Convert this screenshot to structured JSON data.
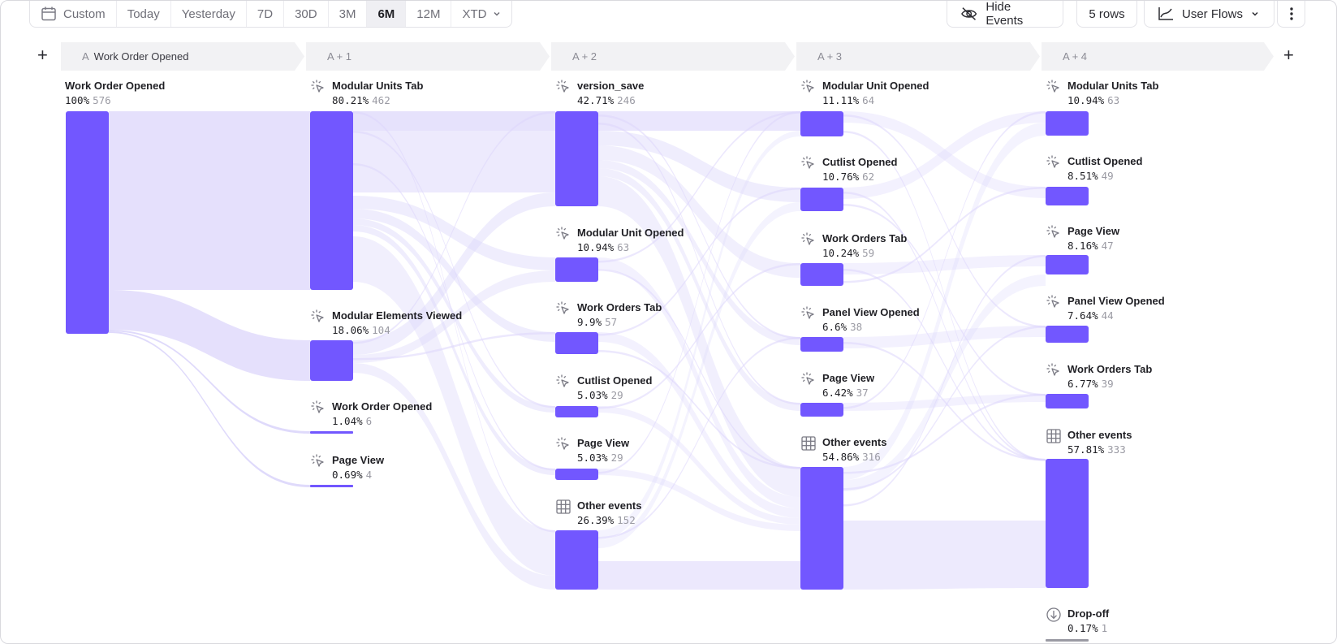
{
  "toolbar": {
    "date_ranges": [
      "Custom",
      "Today",
      "Yesterday",
      "7D",
      "30D",
      "3M",
      "6M",
      "12M",
      "XTD"
    ],
    "active_range": "6M",
    "hide_events_label": "Hide Events",
    "rows_label": "5 rows",
    "view_label": "User Flows"
  },
  "steps": [
    {
      "letter": "A",
      "label": "Work Order Opened"
    },
    {
      "letter": "",
      "label": "A + 1"
    },
    {
      "letter": "",
      "label": "A + 2"
    },
    {
      "letter": "",
      "label": "A + 3"
    },
    {
      "letter": "",
      "label": "A + 4"
    }
  ],
  "columns": [
    [
      {
        "name": "Work Order Opened",
        "pct": "100%",
        "count": "576",
        "icon": "none"
      }
    ],
    [
      {
        "name": "Modular Units Tab",
        "pct": "80.21%",
        "count": "462",
        "icon": "click-icon"
      },
      {
        "name": "Modular Elements Viewed",
        "pct": "18.06%",
        "count": "104",
        "icon": "click-icon"
      },
      {
        "name": "Work Order Opened",
        "pct": "1.04%",
        "count": "6",
        "icon": "click-icon"
      },
      {
        "name": "Page View",
        "pct": "0.69%",
        "count": "4",
        "icon": "click-icon"
      }
    ],
    [
      {
        "name": "version_save",
        "pct": "42.71%",
        "count": "246",
        "icon": "click-icon"
      },
      {
        "name": "Modular Unit Opened",
        "pct": "10.94%",
        "count": "63",
        "icon": "click-icon"
      },
      {
        "name": "Work Orders Tab",
        "pct": "9.9%",
        "count": "57",
        "icon": "click-icon"
      },
      {
        "name": "Cutlist Opened",
        "pct": "5.03%",
        "count": "29",
        "icon": "click-icon"
      },
      {
        "name": "Page View",
        "pct": "5.03%",
        "count": "29",
        "icon": "click-icon"
      },
      {
        "name": "Other events",
        "pct": "26.39%",
        "count": "152",
        "icon": "grid-icon"
      }
    ],
    [
      {
        "name": "Modular Unit Opened",
        "pct": "11.11%",
        "count": "64",
        "icon": "click-icon"
      },
      {
        "name": "Cutlist Opened",
        "pct": "10.76%",
        "count": "62",
        "icon": "click-icon"
      },
      {
        "name": "Work Orders Tab",
        "pct": "10.24%",
        "count": "59",
        "icon": "click-icon"
      },
      {
        "name": "Panel View Opened",
        "pct": "6.6%",
        "count": "38",
        "icon": "click-icon"
      },
      {
        "name": "Page View",
        "pct": "6.42%",
        "count": "37",
        "icon": "click-icon"
      },
      {
        "name": "Other events",
        "pct": "54.86%",
        "count": "316",
        "icon": "grid-icon"
      }
    ],
    [
      {
        "name": "Modular Units Tab",
        "pct": "10.94%",
        "count": "63",
        "icon": "click-icon"
      },
      {
        "name": "Cutlist Opened",
        "pct": "8.51%",
        "count": "49",
        "icon": "click-icon"
      },
      {
        "name": "Page View",
        "pct": "8.16%",
        "count": "47",
        "icon": "click-icon"
      },
      {
        "name": "Panel View Opened",
        "pct": "7.64%",
        "count": "44",
        "icon": "click-icon"
      },
      {
        "name": "Work Orders Tab",
        "pct": "6.77%",
        "count": "39",
        "icon": "click-icon"
      },
      {
        "name": "Other events",
        "pct": "57.81%",
        "count": "333",
        "icon": "grid-icon"
      },
      {
        "name": "Drop-off",
        "pct": "0.17%",
        "count": "1",
        "icon": "dropoff-icon"
      }
    ]
  ],
  "colors": {
    "node": "#7257ff",
    "flow": "#dcd6fb",
    "dropoff": "#9a9aa3"
  }
}
